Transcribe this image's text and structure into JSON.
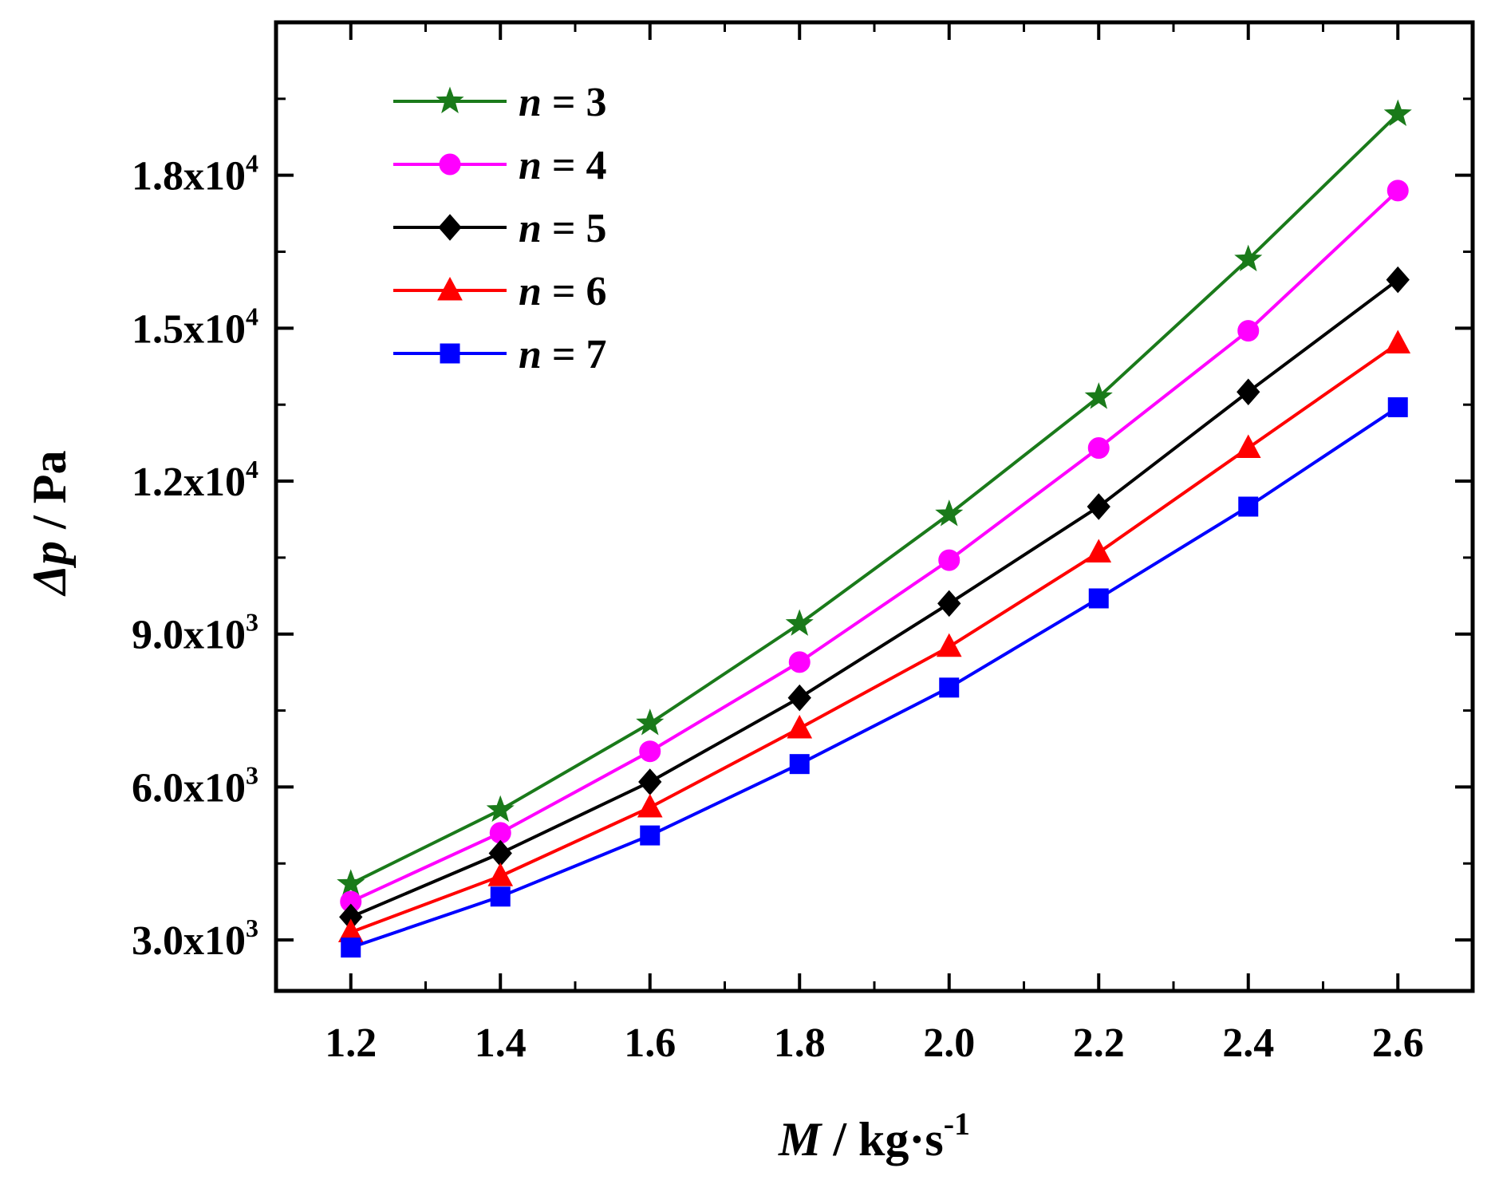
{
  "chart_data": {
    "type": "line",
    "x": [
      1.2,
      1.4,
      1.6,
      1.8,
      2.0,
      2.2,
      2.4,
      2.6
    ],
    "x_ticks": [
      {
        "value": 1.2,
        "label": "1.2"
      },
      {
        "value": 1.4,
        "label": "1.4"
      },
      {
        "value": 1.6,
        "label": "1.6"
      },
      {
        "value": 1.8,
        "label": "1.8"
      },
      {
        "value": 2.0,
        "label": "2.0"
      },
      {
        "value": 2.2,
        "label": "2.2"
      },
      {
        "value": 2.4,
        "label": "2.4"
      },
      {
        "value": 2.6,
        "label": "2.6"
      }
    ],
    "y_ticks": [
      {
        "value": 3000,
        "mantissa": "3.0x10",
        "exp": "3"
      },
      {
        "value": 6000,
        "mantissa": "6.0x10",
        "exp": "3"
      },
      {
        "value": 9000,
        "mantissa": "9.0x10",
        "exp": "3"
      },
      {
        "value": 12000,
        "mantissa": "1.2x10",
        "exp": "4"
      },
      {
        "value": 15000,
        "mantissa": "1.5x10",
        "exp": "4"
      },
      {
        "value": 18000,
        "mantissa": "1.8x10",
        "exp": "4"
      }
    ],
    "xlim": [
      1.1,
      2.7
    ],
    "ylim": [
      2000,
      21000
    ],
    "xlabel": {
      "main": "M",
      "unit": " / kg·s",
      "exp": "-1"
    },
    "ylabel": {
      "main": "Δp",
      "unit": " / Pa"
    },
    "legend_position": "top-left",
    "series": [
      {
        "name": "n = 3",
        "label_var": "n",
        "label_rest": " = 3",
        "color": "#1a7a1a",
        "marker": "star",
        "values": [
          4100,
          5550,
          7250,
          9200,
          11350,
          13650,
          16350,
          19200
        ]
      },
      {
        "name": "n = 4",
        "label_var": "n",
        "label_rest": " = 4",
        "color": "#ff00ff",
        "marker": "circle",
        "values": [
          3750,
          5100,
          6700,
          8450,
          10450,
          12650,
          14950,
          17700
        ]
      },
      {
        "name": "n = 5",
        "label_var": "n",
        "label_rest": " = 5",
        "color": "#000000",
        "marker": "diamond",
        "values": [
          3450,
          4700,
          6100,
          7750,
          9600,
          11500,
          13750,
          15950
        ]
      },
      {
        "name": "n = 6",
        "label_var": "n",
        "label_rest": " = 6",
        "color": "#ff0000",
        "marker": "triangle",
        "values": [
          3150,
          4250,
          5600,
          7150,
          8750,
          10600,
          12650,
          14700
        ]
      },
      {
        "name": "n = 7",
        "label_var": "n",
        "label_rest": " = 7",
        "color": "#0000ff",
        "marker": "square",
        "values": [
          2850,
          3850,
          5050,
          6450,
          7950,
          9700,
          11500,
          13450
        ]
      }
    ]
  }
}
